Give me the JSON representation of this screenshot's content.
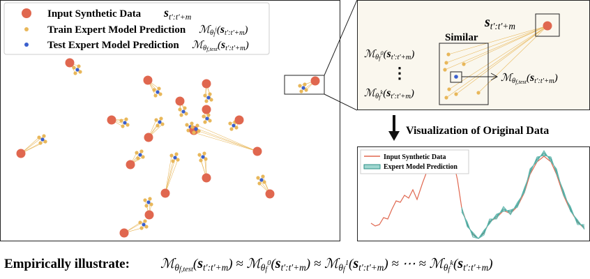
{
  "legend": {
    "items": [
      {
        "label": "Input Synthetic Data",
        "formula": [
          {
            "bold": "s"
          },
          {
            "sub": "t′:t′+m"
          }
        ]
      },
      {
        "label": "Train Expert Model Prediction",
        "formula": [
          "ℳ",
          {
            "sub": "θ"
          },
          {
            "subsub": "f"
          },
          {
            "subsup": "i"
          },
          "(",
          {
            "bold": "s"
          },
          {
            "sub": "t′:t′+m"
          },
          ")"
        ]
      },
      {
        "label": "Test Expert Model Prediction",
        "formula": [
          "ℳ",
          {
            "sub": "θ"
          },
          {
            "subsub": "f,test"
          },
          "(",
          {
            "bold": "s"
          },
          {
            "sub": "t′:t′+m"
          },
          ")"
        ]
      }
    ]
  },
  "zoom": {
    "input": [
      {
        "bold": "s"
      },
      {
        "sub": "t′:t′+m"
      }
    ],
    "similar": "Similar",
    "first": [
      "ℳ",
      {
        "sub": "θ"
      },
      {
        "subsub": "f"
      },
      {
        "subsup": "0"
      },
      "(",
      {
        "bold": "s"
      },
      {
        "sub": "t′:t′+m"
      },
      ")"
    ],
    "dots": "⋮",
    "last": [
      "ℳ",
      {
        "sub": "θ"
      },
      {
        "subsub": "f"
      },
      {
        "subsup": "k"
      },
      "(",
      {
        "bold": "s"
      },
      {
        "sub": "t′:t′+m"
      },
      ")"
    ],
    "test": [
      "ℳ",
      {
        "sub": "θ"
      },
      {
        "subsub": "f,test"
      },
      "(",
      {
        "bold": "s"
      },
      {
        "sub": "t′:t′+m"
      },
      ")"
    ]
  },
  "visualization": {
    "title": "Visualization of Original Data",
    "legend": [
      "Input Synthetic Data",
      "Expert Model Prediction"
    ]
  },
  "bottom": {
    "lead": "Empirically illustrate:",
    "formula": [
      "ℳ",
      {
        "sub": "θ"
      },
      {
        "subsub": "f,test"
      },
      "(",
      {
        "bold": "s"
      },
      {
        "sub": "t′:t′+m"
      },
      ") ≈ ",
      "ℳ",
      {
        "sub": "θ"
      },
      {
        "subsub": "f"
      },
      {
        "subsup": "0"
      },
      "(",
      {
        "bold": "s"
      },
      {
        "sub": "t′:t′+m"
      },
      ") ≈ ",
      "ℳ",
      {
        "sub": "θ"
      },
      {
        "subsub": "f"
      },
      {
        "subsup": "1"
      },
      "(",
      {
        "bold": "s"
      },
      {
        "sub": "t′:t′+m"
      },
      ") ≈ ⋯ ≈ ",
      "ℳ",
      {
        "sub": "θ"
      },
      {
        "subsub": "f"
      },
      {
        "subsup": "k"
      },
      "(",
      {
        "bold": "s"
      },
      {
        "sub": "t′:t′+m"
      },
      ")"
    ]
  }
}
